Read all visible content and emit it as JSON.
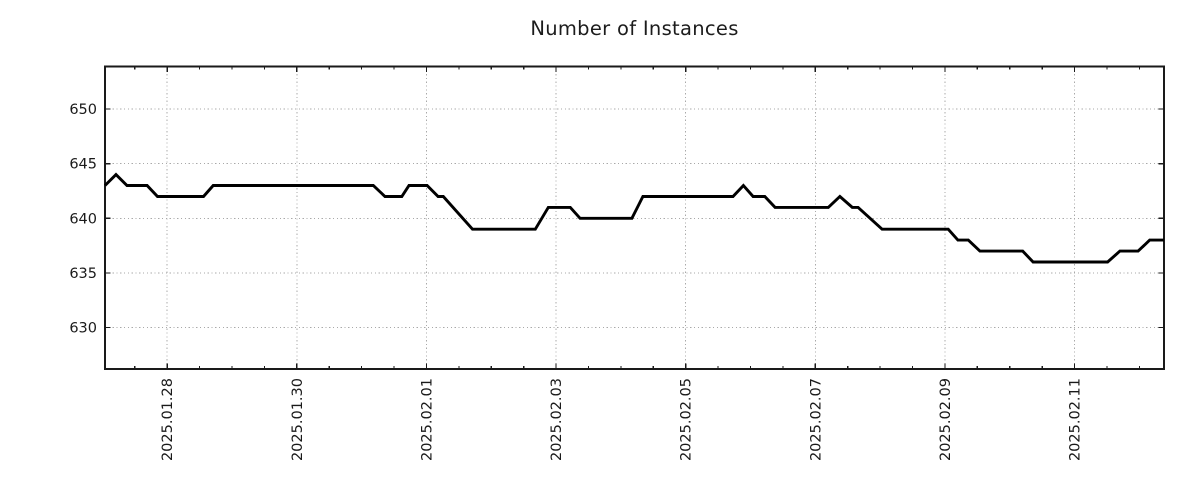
{
  "title": "Number of Instances",
  "chart_data": {
    "type": "line",
    "title": "Number of Instances",
    "xlabel": "",
    "ylabel": "",
    "legend": "none",
    "grid": "dotted",
    "x_unit": "days since 2025-01-28 00:00",
    "x_range": [
      -0.96,
      15.38
    ],
    "y_range": [
      626.2,
      653.9
    ],
    "y_ticks": [
      630,
      635,
      640,
      645,
      650
    ],
    "x_major_ticks": [
      {
        "t": 0,
        "label": "2025.01.28"
      },
      {
        "t": 2,
        "label": "2025.01.30"
      },
      {
        "t": 4,
        "label": "2025.02.01"
      },
      {
        "t": 6,
        "label": "2025.02.03"
      },
      {
        "t": 8,
        "label": "2025.02.05"
      },
      {
        "t": 10,
        "label": "2025.02.07"
      },
      {
        "t": 12,
        "label": "2025.02.09"
      },
      {
        "t": 14,
        "label": "2025.02.11"
      }
    ],
    "x_minor_step": 0.5,
    "colors": {
      "line": "#000000",
      "grid": "#a9a9a9",
      "axis": "#1a1a1a",
      "text": "#1a1a1a",
      "background": "#ffffff"
    },
    "points": [
      [
        -0.96,
        643
      ],
      [
        -0.79,
        644
      ],
      [
        -0.62,
        643
      ],
      [
        -0.31,
        643
      ],
      [
        -0.15,
        642
      ],
      [
        0.56,
        642
      ],
      [
        0.71,
        643
      ],
      [
        3.18,
        643
      ],
      [
        3.36,
        642
      ],
      [
        3.62,
        642
      ],
      [
        3.73,
        643
      ],
      [
        4.01,
        643
      ],
      [
        4.18,
        642
      ],
      [
        4.26,
        642
      ],
      [
        4.71,
        639
      ],
      [
        5.68,
        639
      ],
      [
        5.88,
        641
      ],
      [
        6.22,
        641
      ],
      [
        6.37,
        640
      ],
      [
        7.17,
        640
      ],
      [
        7.34,
        642
      ],
      [
        8.73,
        642
      ],
      [
        8.89,
        643
      ],
      [
        9.04,
        642
      ],
      [
        9.22,
        642
      ],
      [
        9.38,
        641
      ],
      [
        10.2,
        641
      ],
      [
        10.38,
        642
      ],
      [
        10.57,
        641
      ],
      [
        10.66,
        641
      ],
      [
        11.03,
        639
      ],
      [
        12.05,
        639
      ],
      [
        12.2,
        638
      ],
      [
        12.36,
        638
      ],
      [
        12.54,
        637
      ],
      [
        13.2,
        637
      ],
      [
        13.36,
        636
      ],
      [
        14.51,
        636
      ],
      [
        14.7,
        637
      ],
      [
        14.98,
        637
      ],
      [
        15.16,
        638
      ],
      [
        15.38,
        638
      ]
    ]
  }
}
